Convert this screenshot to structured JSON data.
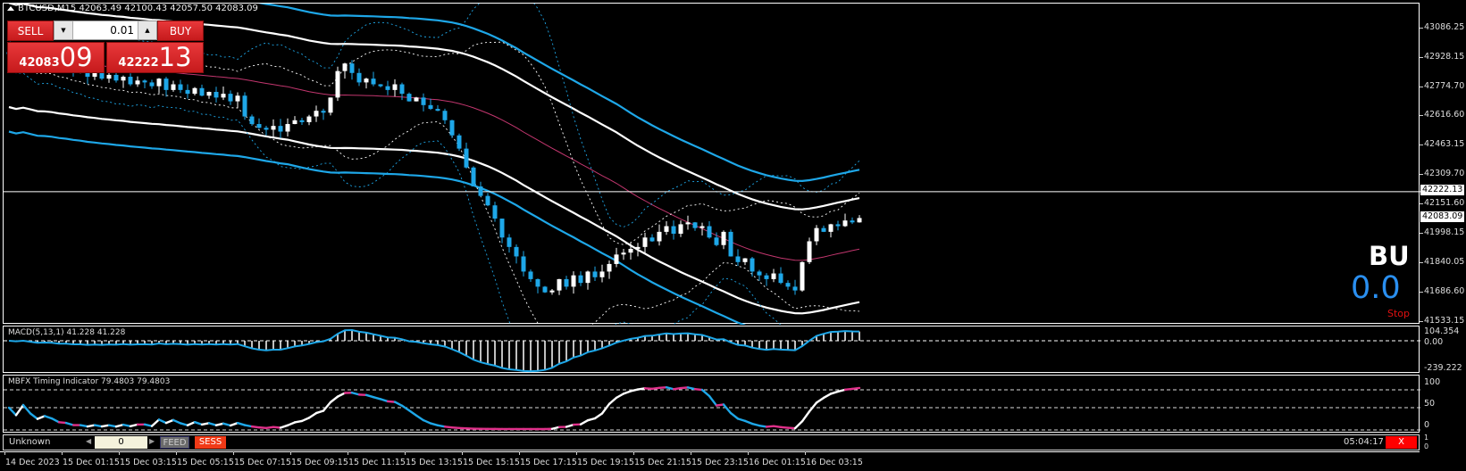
{
  "header": {
    "symbol_line": "BTCUSD,M15  42063.49 42100.43 42057.50 42083.09"
  },
  "trade_panel": {
    "sell_label": "SELL",
    "buy_label": "BUY",
    "lot_value": "0.01",
    "sell_price_main": "42083",
    "sell_price_big": "09",
    "buy_price_main": "42222",
    "buy_price_big": "13"
  },
  "price_axis": {
    "ticks": [
      "43086.25",
      "42928.15",
      "42774.70",
      "42616.60",
      "42463.15",
      "42309.70",
      "42151.60",
      "41998.15",
      "41840.05",
      "41686.60",
      "41533.15"
    ],
    "ask_label": "42222.13",
    "bid_label": "42083.09"
  },
  "overlay": {
    "signal_text": "BU",
    "value_text": "0.0",
    "stop_text": "Stop"
  },
  "macd": {
    "label": "MACD(5,13,1) 41.228 41.228",
    "axis": [
      "104.354",
      "0.00",
      "-239.222"
    ]
  },
  "mbfx": {
    "label": "MBFX Timing Indicator 79.4803 79.4803",
    "axis": [
      "100",
      "50",
      "0"
    ]
  },
  "status_bar": {
    "broker": "Unknown",
    "counter_value": "0",
    "feed_label": "FEED",
    "sess_label": "SESS",
    "clock": "05:04:17",
    "close_label": "X",
    "axis": [
      "1",
      "0"
    ]
  },
  "time_axis": [
    "14 Dec 2023",
    "15 Dec 01:15",
    "15 Dec 03:15",
    "15 Dec 05:15",
    "15 Dec 07:15",
    "15 Dec 09:15",
    "15 Dec 11:15",
    "15 Dec 13:15",
    "15 Dec 15:15",
    "15 Dec 17:15",
    "15 Dec 19:15",
    "15 Dec 21:15",
    "15 Dec 23:15",
    "16 Dec 01:15",
    "16 Dec 03:15"
  ],
  "colors": {
    "bull": "#ffffff",
    "bear": "#1ea7e8",
    "mid": "#c2366e",
    "band_blue": "#1ea7e8",
    "sell_red": "#d42022",
    "feed_gray": "#6b6b6b",
    "sess_red": "#f03a17"
  },
  "chart_data": {
    "type": "candlestick",
    "timeframe": "M15",
    "price_range": [
      41533.15,
      43086.25
    ],
    "closes": [
      42950,
      42930,
      42960,
      42910,
      42890,
      42920,
      42900,
      42870,
      42880,
      42850,
      42860,
      42830,
      42850,
      42820,
      42840,
      42810,
      42830,
      42790,
      42810,
      42800,
      42780,
      42820,
      42760,
      42790,
      42760,
      42740,
      42770,
      42730,
      42750,
      42720,
      42740,
      42700,
      42730,
      42620,
      42580,
      42560,
      42550,
      42570,
      42540,
      42580,
      42600,
      42590,
      42620,
      42650,
      42640,
      42720,
      42860,
      42900,
      42850,
      42800,
      42820,
      42790,
      42780,
      42760,
      42790,
      42740,
      42700,
      42720,
      42680,
      42660,
      42650,
      42600,
      42520,
      42450,
      42350,
      42250,
      42200,
      42150,
      42080,
      41980,
      41930,
      41880,
      41800,
      41760,
      41720,
      41690,
      41700,
      41760,
      41720,
      41780,
      41740,
      41800,
      41770,
      41800,
      41840,
      41890,
      41900,
      41920,
      41930,
      41980,
      41960,
      42010,
      42040,
      42000,
      42050,
      42060,
      42030,
      42040,
      41980,
      41940,
      42010,
      41880,
      41850,
      41870,
      41800,
      41780,
      41760,
      41790,
      41740,
      41720,
      41700,
      41850,
      41960,
      42030,
      42010,
      42050,
      42040,
      42070,
      42060,
      42083.09
    ]
  }
}
